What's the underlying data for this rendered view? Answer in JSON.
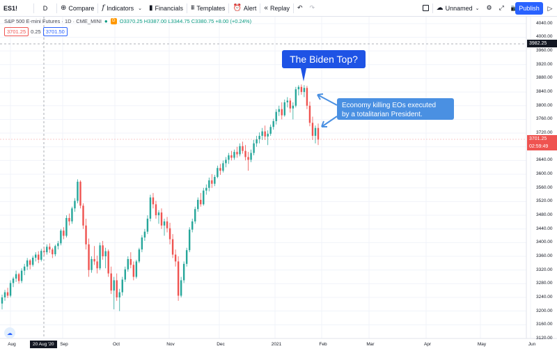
{
  "toolbar": {
    "symbol": "ES1!",
    "interval": "D",
    "compare": "Compare",
    "indicators": "Indicators",
    "financials": "Financials",
    "templates": "Templates",
    "alert": "Alert",
    "replay": "Replay",
    "layout_name": "Unnamed",
    "publish": "Publish"
  },
  "legend": {
    "title": "S&P 500 E-mini Futures · 1D · CME_MINI",
    "ohlc": "O3370.25 H3387.00 L3344.75 C3380.75 +8.00 (+0.24%)"
  },
  "quote": {
    "bid": "3701.25",
    "spread": "0.25",
    "ask": "3701.50"
  },
  "price_axis": {
    "ticks": [
      "4040.00",
      "4000.00",
      "3960.00",
      "3920.00",
      "3880.00",
      "3840.00",
      "3800.00",
      "3760.00",
      "3720.00",
      "3680.00",
      "3640.00",
      "3600.00",
      "3560.00",
      "3520.00",
      "3480.00",
      "3440.00",
      "3400.00",
      "3360.00",
      "3320.00",
      "3280.00",
      "3240.00",
      "3200.00",
      "3160.00",
      "3120.00"
    ],
    "crosshair_price": "3982.25",
    "last_price": "3701.25",
    "countdown": "02:59:49"
  },
  "time_axis": {
    "ticks": [
      "Aug",
      "Sep",
      "Oct",
      "Nov",
      "Dec",
      "2021",
      "Feb",
      "Mar",
      "Apr",
      "May",
      "Jun"
    ],
    "crosshair_date": "20 Aug '20"
  },
  "annotations": {
    "callout": "The Biden Top?",
    "note_line1": "Economy killing EOs executed",
    "note_line2": "by a totalitarian President."
  },
  "colors": {
    "up": "#26a69a",
    "down": "#ef5350",
    "accent": "#2962ff",
    "callout": "#1e53e5",
    "note": "#4a90e2"
  },
  "chart_data": {
    "type": "candlestick",
    "ylim": [
      3120,
      4060
    ],
    "ohlc": [
      [
        3222,
        3248,
        3205,
        3240
      ],
      [
        3240,
        3262,
        3230,
        3255
      ],
      [
        3255,
        3268,
        3238,
        3245
      ],
      [
        3245,
        3290,
        3240,
        3282
      ],
      [
        3282,
        3300,
        3270,
        3295
      ],
      [
        3295,
        3318,
        3285,
        3308
      ],
      [
        3308,
        3312,
        3280,
        3288
      ],
      [
        3288,
        3325,
        3282,
        3318
      ],
      [
        3318,
        3338,
        3305,
        3330
      ],
      [
        3330,
        3355,
        3320,
        3348
      ],
      [
        3348,
        3352,
        3322,
        3335
      ],
      [
        3335,
        3362,
        3330,
        3356
      ],
      [
        3356,
        3372,
        3345,
        3365
      ],
      [
        3365,
        3375,
        3340,
        3350
      ],
      [
        3350,
        3382,
        3345,
        3376
      ],
      [
        3376,
        3388,
        3360,
        3372
      ],
      [
        3372,
        3395,
        3365,
        3388
      ],
      [
        3388,
        3398,
        3370,
        3380
      ],
      [
        3380,
        3385,
        3355,
        3366
      ],
      [
        3366,
        3394,
        3360,
        3390
      ],
      [
        3390,
        3405,
        3380,
        3398
      ],
      [
        3398,
        3440,
        3392,
        3435
      ],
      [
        3435,
        3445,
        3410,
        3420
      ],
      [
        3420,
        3480,
        3415,
        3472
      ],
      [
        3472,
        3485,
        3450,
        3462
      ],
      [
        3462,
        3505,
        3455,
        3500
      ],
      [
        3500,
        3530,
        3490,
        3522
      ],
      [
        3522,
        3585,
        3515,
        3578
      ],
      [
        3578,
        3582,
        3500,
        3508
      ],
      [
        3508,
        3515,
        3440,
        3450
      ],
      [
        3450,
        3470,
        3380,
        3395
      ],
      [
        3395,
        3412,
        3300,
        3320
      ],
      [
        3320,
        3360,
        3312,
        3352
      ],
      [
        3352,
        3390,
        3335,
        3345
      ],
      [
        3345,
        3362,
        3310,
        3325
      ],
      [
        3325,
        3400,
        3320,
        3392
      ],
      [
        3392,
        3405,
        3350,
        3360
      ],
      [
        3360,
        3385,
        3325,
        3375
      ],
      [
        3375,
        3380,
        3300,
        3310
      ],
      [
        3310,
        3330,
        3250,
        3260
      ],
      [
        3260,
        3300,
        3205,
        3290
      ],
      [
        3290,
        3310,
        3230,
        3240
      ],
      [
        3240,
        3265,
        3200,
        3255
      ],
      [
        3255,
        3300,
        3245,
        3292
      ],
      [
        3292,
        3330,
        3285,
        3322
      ],
      [
        3322,
        3360,
        3315,
        3352
      ],
      [
        3352,
        3372,
        3325,
        3335
      ],
      [
        3335,
        3345,
        3290,
        3300
      ],
      [
        3300,
        3350,
        3295,
        3345
      ],
      [
        3345,
        3385,
        3340,
        3380
      ],
      [
        3380,
        3422,
        3372,
        3415
      ],
      [
        3415,
        3440,
        3405,
        3432
      ],
      [
        3432,
        3480,
        3425,
        3470
      ],
      [
        3470,
        3540,
        3462,
        3532
      ],
      [
        3532,
        3545,
        3500,
        3512
      ],
      [
        3512,
        3522,
        3470,
        3480
      ],
      [
        3480,
        3495,
        3455,
        3488
      ],
      [
        3488,
        3500,
        3440,
        3450
      ],
      [
        3450,
        3470,
        3420,
        3462
      ],
      [
        3462,
        3475,
        3430,
        3442
      ],
      [
        3442,
        3458,
        3395,
        3410
      ],
      [
        3410,
        3425,
        3355,
        3365
      ],
      [
        3365,
        3380,
        3330,
        3345
      ],
      [
        3345,
        3360,
        3230,
        3245
      ],
      [
        3245,
        3300,
        3240,
        3290
      ],
      [
        3290,
        3345,
        3282,
        3338
      ],
      [
        3338,
        3385,
        3330,
        3378
      ],
      [
        3378,
        3445,
        3372,
        3438
      ],
      [
        3438,
        3470,
        3430,
        3462
      ],
      [
        3462,
        3505,
        3455,
        3498
      ],
      [
        3498,
        3532,
        3490,
        3525
      ],
      [
        3525,
        3545,
        3505,
        3512
      ],
      [
        3512,
        3560,
        3508,
        3552
      ],
      [
        3552,
        3570,
        3540,
        3560
      ],
      [
        3560,
        3590,
        3550,
        3582
      ],
      [
        3582,
        3600,
        3560,
        3572
      ],
      [
        3572,
        3598,
        3565,
        3592
      ],
      [
        3592,
        3625,
        3588,
        3618
      ],
      [
        3618,
        3630,
        3598,
        3610
      ],
      [
        3610,
        3640,
        3605,
        3632
      ],
      [
        3632,
        3650,
        3620,
        3642
      ],
      [
        3642,
        3662,
        3630,
        3655
      ],
      [
        3655,
        3668,
        3640,
        3648
      ],
      [
        3648,
        3672,
        3642,
        3665
      ],
      [
        3665,
        3680,
        3648,
        3658
      ],
      [
        3658,
        3690,
        3652,
        3682
      ],
      [
        3682,
        3695,
        3660,
        3668
      ],
      [
        3668,
        3685,
        3640,
        3650
      ],
      [
        3650,
        3665,
        3610,
        3642
      ],
      [
        3642,
        3672,
        3635,
        3662
      ],
      [
        3662,
        3700,
        3655,
        3690
      ],
      [
        3690,
        3712,
        3680,
        3702
      ],
      [
        3702,
        3722,
        3690,
        3712
      ],
      [
        3712,
        3735,
        3700,
        3725
      ],
      [
        3725,
        3742,
        3700,
        3710
      ],
      [
        3710,
        3728,
        3685,
        3718
      ],
      [
        3718,
        3745,
        3712,
        3738
      ],
      [
        3738,
        3762,
        3730,
        3755
      ],
      [
        3755,
        3790,
        3745,
        3782
      ],
      [
        3782,
        3800,
        3770,
        3790
      ],
      [
        3790,
        3810,
        3760,
        3772
      ],
      [
        3772,
        3818,
        3768,
        3810
      ],
      [
        3810,
        3825,
        3795,
        3815
      ],
      [
        3815,
        3822,
        3780,
        3792
      ],
      [
        3792,
        3810,
        3760,
        3800
      ],
      [
        3800,
        3855,
        3795,
        3848
      ],
      [
        3848,
        3860,
        3830,
        3855
      ],
      [
        3855,
        3862,
        3832,
        3840
      ],
      [
        3840,
        3860,
        3825,
        3852
      ],
      [
        3852,
        3858,
        3790,
        3800
      ],
      [
        3800,
        3812,
        3740,
        3750
      ],
      [
        3750,
        3768,
        3700,
        3712
      ],
      [
        3712,
        3742,
        3690,
        3735
      ],
      [
        3735,
        3748,
        3685,
        3701
      ]
    ]
  }
}
